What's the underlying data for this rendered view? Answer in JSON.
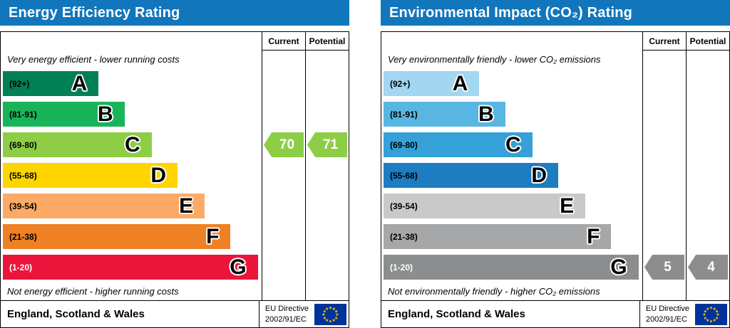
{
  "header_color": "#1176bc",
  "chart_data": [
    {
      "type": "bar",
      "title": "Energy Efficiency Rating",
      "columns": {
        "current": "Current",
        "potential": "Potential"
      },
      "top_note": "Very energy efficient - lower running costs",
      "bottom_note": "Not energy efficient - higher running costs",
      "bands": [
        {
          "range": "(92+)",
          "letter": "A",
          "color": "#008054",
          "range_color": "#000000",
          "width_pct": 37
        },
        {
          "range": "(81-91)",
          "letter": "B",
          "color": "#19b459",
          "range_color": "#000000",
          "width_pct": 47
        },
        {
          "range": "(69-80)",
          "letter": "C",
          "color": "#8dce46",
          "range_color": "#000000",
          "width_pct": 57.5
        },
        {
          "range": "(55-68)",
          "letter": "D",
          "color": "#ffd500",
          "range_color": "#000000",
          "width_pct": 67.5
        },
        {
          "range": "(39-54)",
          "letter": "E",
          "color": "#fcaa65",
          "range_color": "#000000",
          "width_pct": 78
        },
        {
          "range": "(21-38)",
          "letter": "F",
          "color": "#ef8023",
          "range_color": "#000000",
          "width_pct": 88
        },
        {
          "range": "(1-20)",
          "letter": "G",
          "color": "#e9153b",
          "range_color": "#ffffff",
          "width_pct": 98.5
        }
      ],
      "current": {
        "value": "70",
        "band_index": 2,
        "color": "#8dce46"
      },
      "potential": {
        "value": "71",
        "band_index": 2,
        "color": "#8dce46"
      },
      "footer": {
        "region": "England, Scotland & Wales",
        "directive_line1": "EU Directive",
        "directive_line2": "2002/91/EC"
      }
    },
    {
      "type": "bar",
      "title": "Environmental Impact (CO₂) Rating",
      "columns": {
        "current": "Current",
        "potential": "Potential"
      },
      "top_note": "Very environmentally friendly - lower CO₂ emissions",
      "bottom_note": "Not environmentally friendly - higher CO₂ emissions",
      "bands": [
        {
          "range": "(92+)",
          "letter": "A",
          "color": "#a3d6f0",
          "range_color": "#000000",
          "width_pct": 37
        },
        {
          "range": "(81-91)",
          "letter": "B",
          "color": "#58b6e2",
          "range_color": "#000000",
          "width_pct": 47
        },
        {
          "range": "(69-80)",
          "letter": "C",
          "color": "#35a1d8",
          "range_color": "#000000",
          "width_pct": 57.5
        },
        {
          "range": "(55-68)",
          "letter": "D",
          "color": "#1e7cc0",
          "range_color": "#000000",
          "width_pct": 67.5
        },
        {
          "range": "(39-54)",
          "letter": "E",
          "color": "#c8c9ca",
          "range_color": "#000000",
          "width_pct": 78
        },
        {
          "range": "(21-38)",
          "letter": "F",
          "color": "#a5a7a9",
          "range_color": "#000000",
          "width_pct": 88
        },
        {
          "range": "(1-20)",
          "letter": "G",
          "color": "#8b8d8e",
          "range_color": "#ffffff",
          "width_pct": 98.5
        }
      ],
      "current": {
        "value": "5",
        "band_index": 6,
        "color": "#8b8d8e"
      },
      "potential": {
        "value": "4",
        "band_index": 6,
        "color": "#8b8d8e"
      },
      "footer": {
        "region": "England, Scotland & Wales",
        "directive_line1": "EU Directive",
        "directive_line2": "2002/91/EC"
      }
    }
  ]
}
